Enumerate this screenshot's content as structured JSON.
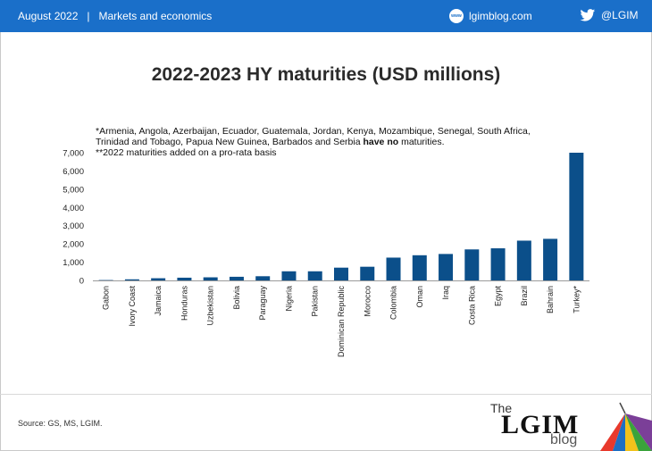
{
  "header": {
    "date": "August 2022",
    "section": "Markets and economics",
    "site_icon_text": "www",
    "site": "lgimblog.com",
    "twitter": "@LGIM"
  },
  "title": "2022-2023 HY maturities (USD millions)",
  "note": {
    "line1": "*Armenia, Angola, Azerbaijan, Ecuador, Guatemala, Jordan, Kenya, Mozambique, Senegal, South Africa, Trinidad and Tobago, Papua New Guinea, Barbados and Serbia ",
    "line1_bold": "have no",
    "line1_end": " maturities.",
    "line2": "**2022 maturities added on a pro-rata basis"
  },
  "footer": {
    "source": "Source: GS, MS, LGIM."
  },
  "logo": {
    "the": "The",
    "lgim": "LGIM",
    "blog": "blog"
  },
  "colors": {
    "bar": "#0b4f8a",
    "topbar": "#1a6fc9"
  },
  "chart_data": {
    "type": "bar",
    "title": "2022-2023 HY maturities (USD millions)",
    "xlabel": "",
    "ylabel": "",
    "categories": [
      "Gabon",
      "Ivory Coast",
      "Jamaica",
      "Honduras",
      "Uzbekistan",
      "Bolivia",
      "Paraguay",
      "Nigeria",
      "Pakistan",
      "Dominican Republic",
      "Morocco",
      "Colombia",
      "Oman",
      "Iraq",
      "Costa Rica",
      "Egypt",
      "Brazil",
      "Bahrain",
      "Turkey*"
    ],
    "values": [
      20,
      60,
      120,
      150,
      170,
      200,
      230,
      500,
      500,
      700,
      750,
      1250,
      1380,
      1450,
      1700,
      1760,
      2180,
      2280,
      7000
    ],
    "ylim": [
      0,
      7000
    ],
    "yticks": [
      0,
      1000,
      2000,
      3000,
      4000,
      5000,
      6000,
      7000
    ],
    "ytick_labels": [
      "0",
      "1,000",
      "2,000",
      "3,000",
      "4,000",
      "5,000",
      "6,000",
      "7,000"
    ],
    "grid": false,
    "legend": "none"
  }
}
